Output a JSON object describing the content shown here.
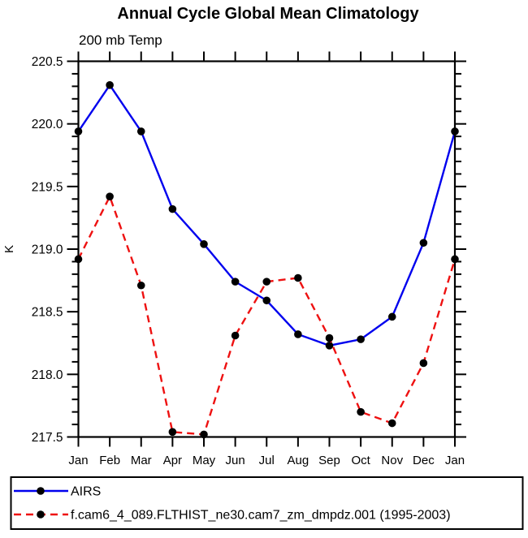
{
  "title": "Annual Cycle Global Mean Climatology",
  "subtitle": "200 mb Temp",
  "ylabel": "K",
  "legend": {
    "position": "bottom",
    "items": [
      {
        "label": "AIRS",
        "color": "#0000ee",
        "style": "solid",
        "marker": "filled-circle"
      },
      {
        "label": "f.cam6_4_089.FLTHIST_ne30.cam7_zm_dmpdz.001 (1995-2003)",
        "color": "#ee1111",
        "style": "dashed",
        "marker": "filled-circle"
      }
    ]
  },
  "chart_data": {
    "type": "line",
    "title": "Annual Cycle Global Mean Climatology",
    "subtitle": "200 mb Temp",
    "xlabel": "",
    "ylabel": "K",
    "categories": [
      "Jan",
      "Feb",
      "Mar",
      "Apr",
      "May",
      "Jun",
      "Jul",
      "Aug",
      "Sep",
      "Oct",
      "Nov",
      "Dec",
      "Jan"
    ],
    "series": [
      {
        "name": "AIRS",
        "color": "#0000ee",
        "line_style": "solid",
        "marker": "filled-circle",
        "marker_color": "#000000",
        "values": [
          219.94,
          220.31,
          219.94,
          219.32,
          219.04,
          218.74,
          218.59,
          218.32,
          218.23,
          218.28,
          218.46,
          219.05,
          219.94
        ]
      },
      {
        "name": "f.cam6_4_089.FLTHIST_ne30.cam7_zm_dmpdz.001 (1995-2003)",
        "color": "#ee1111",
        "line_style": "dashed",
        "marker": "filled-circle",
        "marker_color": "#000000",
        "values": [
          218.92,
          219.42,
          218.71,
          217.54,
          217.52,
          218.31,
          218.74,
          218.77,
          218.29,
          217.7,
          217.61,
          218.09,
          218.92
        ]
      }
    ],
    "ylim": [
      217.5,
      220.5
    ],
    "ytick_major_interval": 0.5,
    "ytick_minor_interval": 0.1,
    "ytick_labels": [
      "217.5",
      "218.0",
      "218.5",
      "219.0",
      "219.5",
      "220.0",
      "220.5"
    ],
    "grid": false,
    "legend_position": "bottom"
  }
}
